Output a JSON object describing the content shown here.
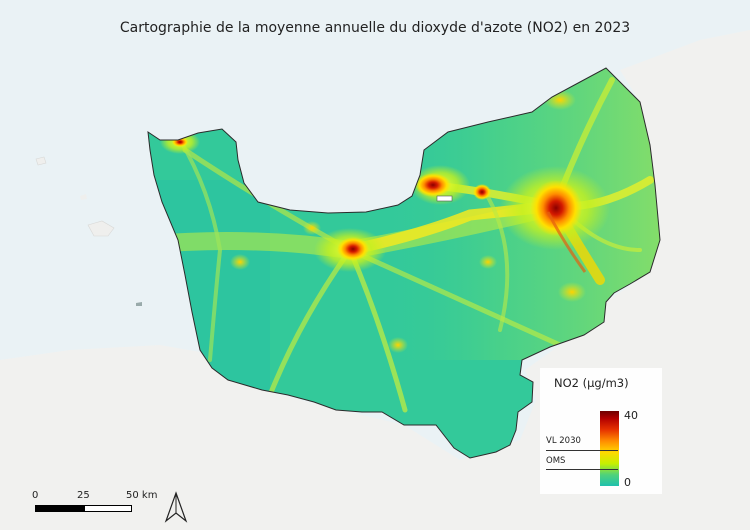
{
  "title": "Cartographie de la moyenne annuelle du dioxyde d'azote (NO2) en 2023",
  "legend": {
    "title": "NO2 (µg/m3)",
    "max": "40",
    "min": "0",
    "thresholds": [
      {
        "label": "VL 2030"
      },
      {
        "label": "OMS"
      }
    ]
  },
  "scale_bar": {
    "labels": [
      "0",
      "25",
      "50 km"
    ]
  },
  "colors": {
    "sea": "#eaf2f5",
    "land_outside": "#f1f1ef",
    "region_base": "#33c99a",
    "high": "#b30000",
    "medium": "#ffe000",
    "low": "#1fc0ad"
  },
  "icons": {
    "north_arrow": "north-arrow-icon"
  }
}
